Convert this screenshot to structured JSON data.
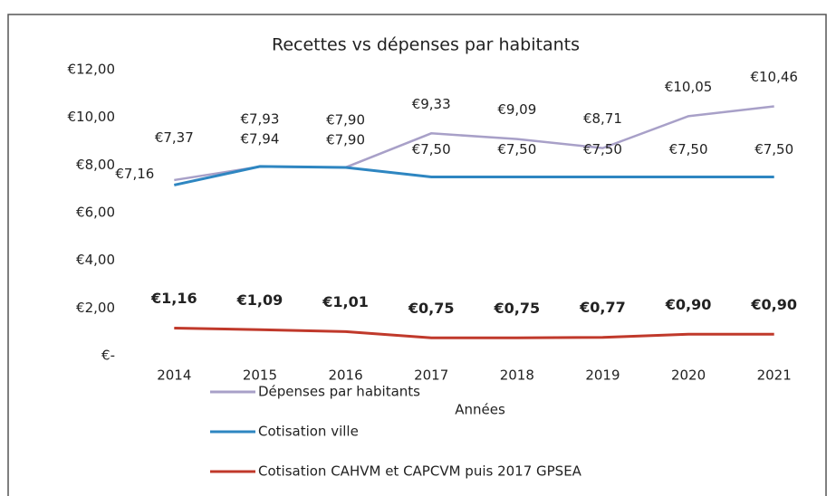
{
  "chart_data": {
    "type": "line",
    "title": "Recettes vs dépenses par habitants",
    "x_label": "Années",
    "categories": [
      "2014",
      "2015",
      "2016",
      "2017",
      "2018",
      "2019",
      "2020",
      "2021"
    ],
    "ylim": [
      0,
      12
    ],
    "yticks": [
      {
        "value": 0,
        "label": "€-"
      },
      {
        "value": 2,
        "label": "€2,00"
      },
      {
        "value": 4,
        "label": "€4,00"
      },
      {
        "value": 6,
        "label": "€6,00"
      },
      {
        "value": 8,
        "label": "€8,00"
      },
      {
        "value": 10,
        "label": "€10,00"
      },
      {
        "value": 12,
        "label": "€12,00"
      }
    ],
    "grid": false,
    "legend": "bottom-left",
    "series": [
      {
        "name": "Dépenses par habitants",
        "color": "#a8a0c8",
        "values": [
          7.37,
          7.93,
          7.9,
          9.33,
          9.09,
          8.71,
          10.05,
          10.46
        ],
        "value_labels": [
          "€7,37",
          "€7,93",
          "€7,90",
          "€9,33",
          "€9,09",
          "€8,71",
          "€10,05",
          "€10,46"
        ]
      },
      {
        "name": "Cotisation ville",
        "color": "#2e86c1",
        "values": [
          7.16,
          7.94,
          7.9,
          7.5,
          7.5,
          7.5,
          7.5,
          7.5
        ],
        "value_labels": [
          "€7,16",
          "€7,94",
          "€7,90",
          "€7,50",
          "€7,50",
          "€7,50",
          "€7,50",
          "€7,50"
        ]
      },
      {
        "name": "Cotisation CAHVM et CAPCVM puis 2017 GPSEA",
        "color": "#c0392b",
        "values": [
          1.16,
          1.09,
          1.01,
          0.75,
          0.75,
          0.77,
          0.9,
          0.9
        ],
        "value_labels": [
          "€1,16",
          "€1,09",
          "€1,01",
          "€0,75",
          "€0,75",
          "€0,77",
          "€0,90",
          "€0,90"
        ]
      }
    ]
  }
}
